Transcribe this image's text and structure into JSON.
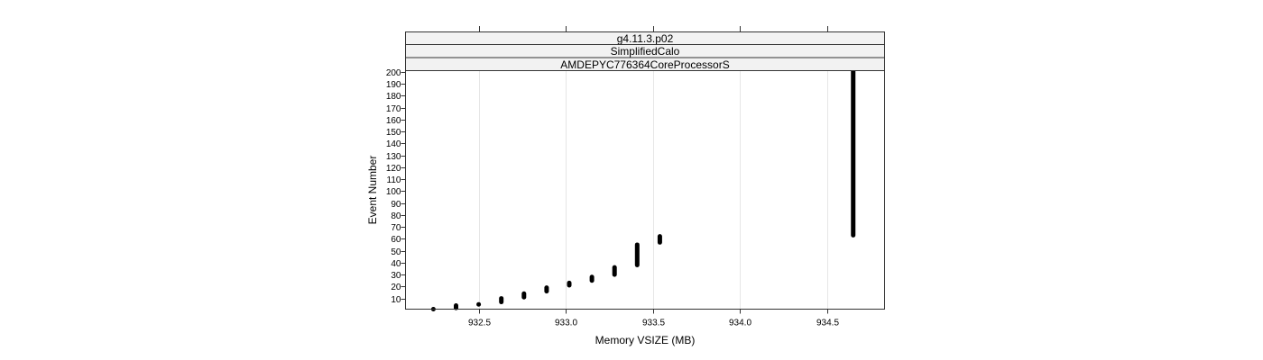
{
  "chart_data": {
    "type": "scatter",
    "strips": [
      "g4.11.3.p02",
      "SimplifiedCalo",
      "AMDEPYC776364CoreProcessorS"
    ],
    "xlabel": "Memory VSIZE (MB)",
    "ylabel": "Event Number",
    "xlim": [
      932.08,
      934.83
    ],
    "ylim": [
      1,
      201
    ],
    "x_ticks": [
      932.5,
      933.0,
      933.5,
      934.0,
      934.5
    ],
    "x_tick_labels": [
      "932.5",
      "933.0",
      "933.5",
      "934.0",
      "934.5"
    ],
    "y_ticks": [
      10,
      20,
      30,
      40,
      50,
      60,
      70,
      80,
      90,
      100,
      110,
      120,
      130,
      140,
      150,
      160,
      170,
      180,
      190,
      200
    ],
    "y_tick_labels": [
      "10",
      "20",
      "30",
      "40",
      "50",
      "60",
      "70",
      "80",
      "90",
      "100",
      "110",
      "120",
      "130",
      "140",
      "150",
      "160",
      "170",
      "180",
      "190",
      "200"
    ],
    "grid": "vertical",
    "colors": {
      "points": "#000000",
      "strip_bg": "#f2f2f2",
      "grid": "#e6e6e6"
    },
    "series": [
      {
        "points": [
          {
            "x": 932.24,
            "y_min": 1,
            "y_max": 1
          },
          {
            "x": 932.37,
            "y_min": 2,
            "y_max": 4
          },
          {
            "x": 932.5,
            "y_min": 5,
            "y_max": 5
          },
          {
            "x": 932.63,
            "y_min": 7,
            "y_max": 10
          },
          {
            "x": 932.76,
            "y_min": 11,
            "y_max": 14
          },
          {
            "x": 932.89,
            "y_min": 16,
            "y_max": 19
          },
          {
            "x": 933.02,
            "y_min": 21,
            "y_max": 23
          },
          {
            "x": 933.15,
            "y_min": 25,
            "y_max": 28
          },
          {
            "x": 933.28,
            "y_min": 30,
            "y_max": 36
          },
          {
            "x": 933.41,
            "y_min": 38,
            "y_max": 55
          },
          {
            "x": 933.54,
            "y_min": 57,
            "y_max": 62
          },
          {
            "x": 934.65,
            "y_min": 63,
            "y_max": 201
          }
        ]
      }
    ]
  }
}
